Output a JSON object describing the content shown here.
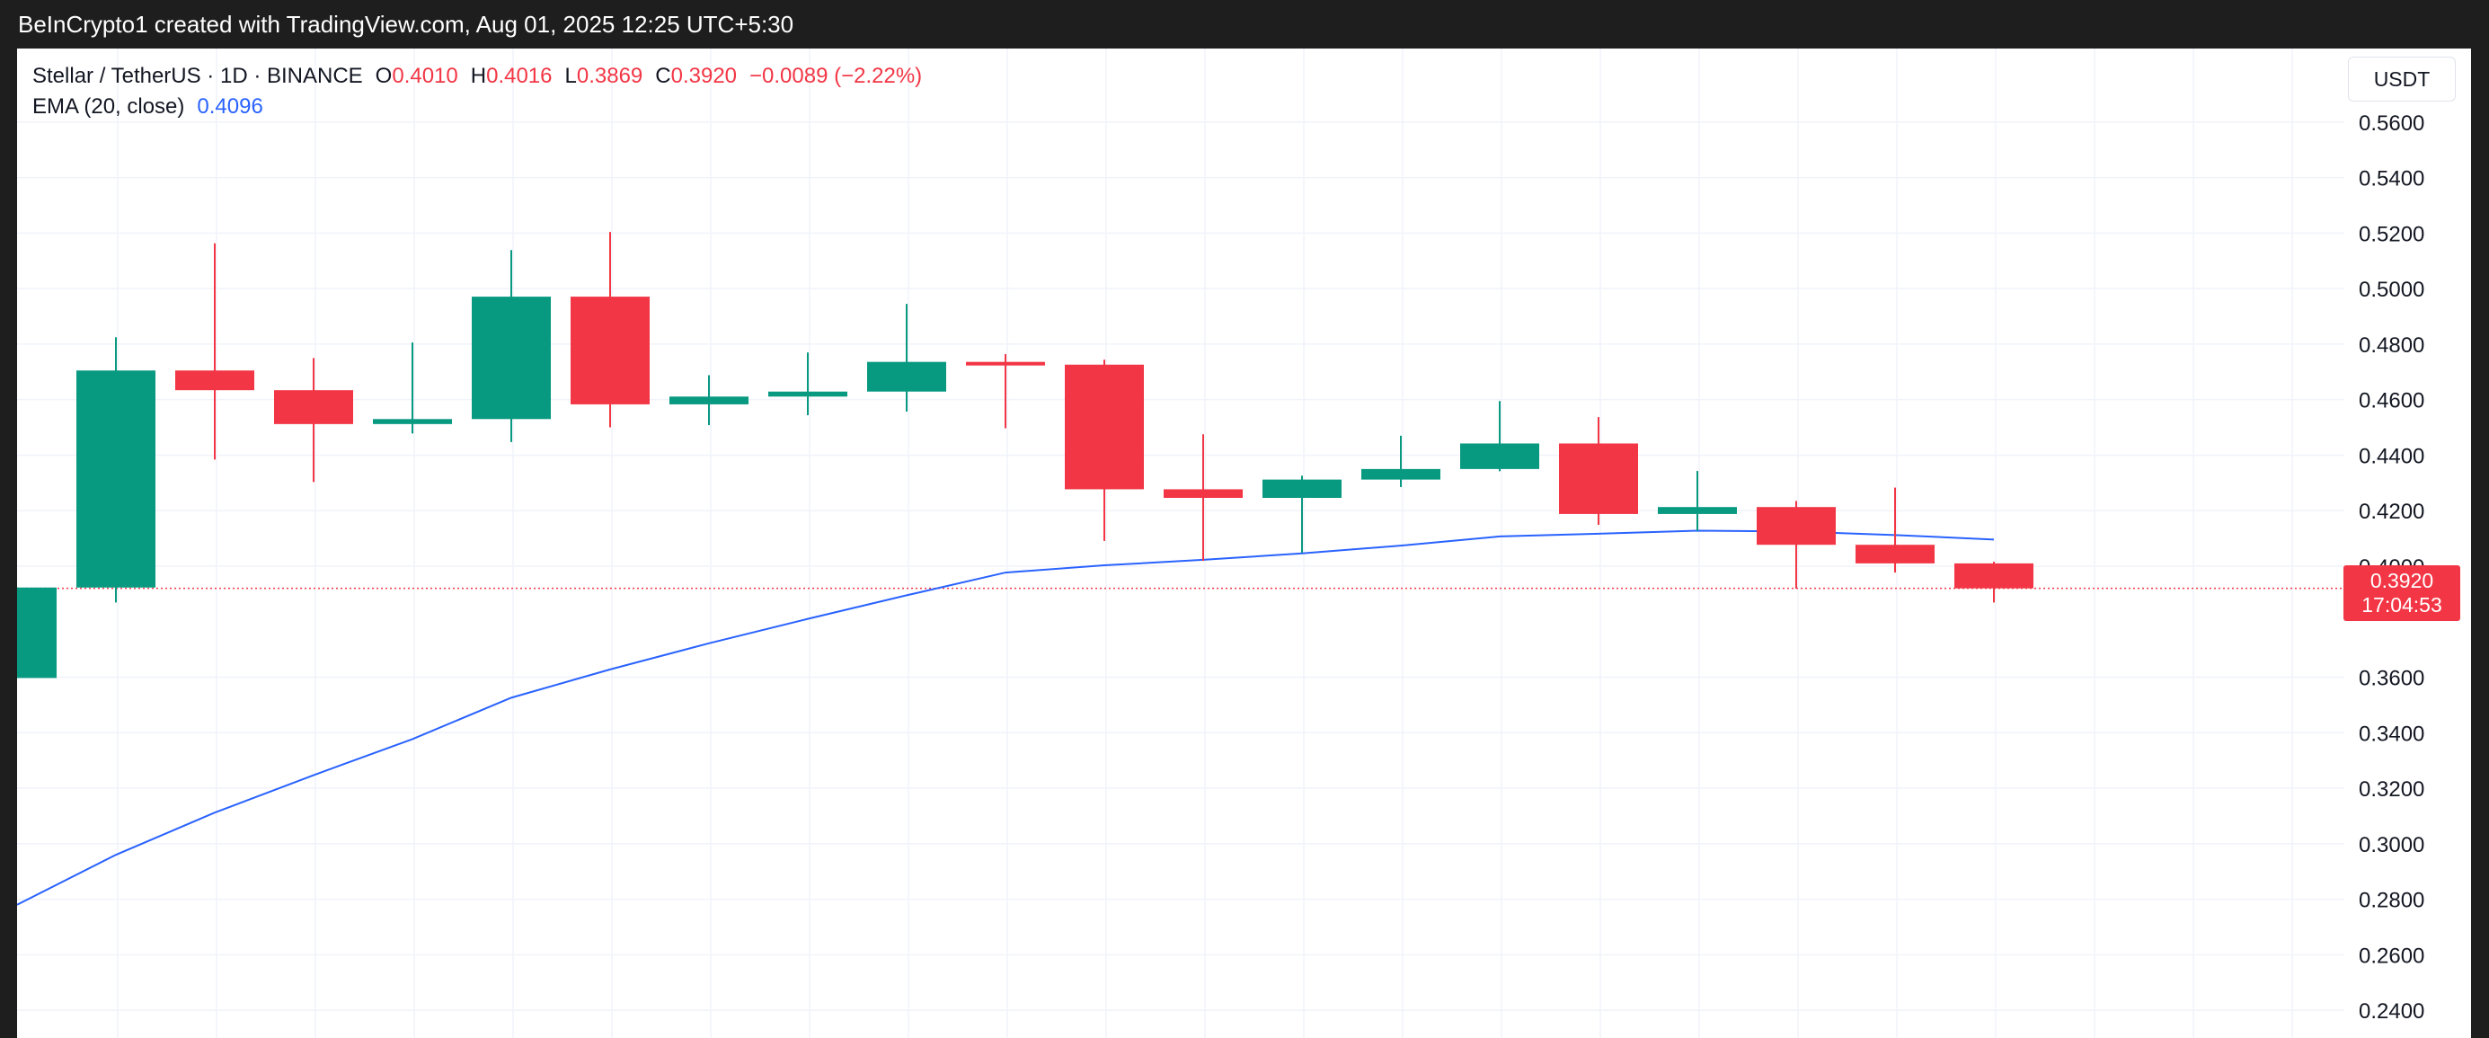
{
  "header": {
    "text": "BeInCrypto1 created with TradingView.com, Aug 01, 2025 12:25 UTC+5:30"
  },
  "legend": {
    "symbol": "Stellar / TetherUS · 1D · BINANCE",
    "open_label": "O",
    "open_value": "0.4010",
    "high_label": "H",
    "high_value": "0.4016",
    "low_label": "L",
    "low_value": "0.3869",
    "close_label": "C",
    "close_value": "0.3920",
    "change": "−0.0089 (−2.22%)",
    "ema_label": "EMA (20, close)",
    "ema_value": "0.4096"
  },
  "currency": "USDT",
  "price_tag": {
    "price": "0.3920",
    "countdown": "17:04:53"
  },
  "colors": {
    "up": "#089981",
    "down": "#f23645",
    "ema": "#2962ff",
    "grid": "#f0f3fa",
    "price_line": "#f23645"
  },
  "chart_data": {
    "type": "candlestick",
    "title": "Stellar / TetherUS · 1D · BINANCE",
    "ylim": [
      0.23,
      0.5865
    ],
    "yticks": [
      "0.5600",
      "0.5400",
      "0.5200",
      "0.5000",
      "0.4800",
      "0.4600",
      "0.4400",
      "0.4200",
      "0.4000",
      "0.3600",
      "0.3400",
      "0.3200",
      "0.3000",
      "0.2800",
      "0.2600",
      "0.2400"
    ],
    "current_price": 0.392,
    "candles": [
      {
        "o": 0.3597,
        "h": 0.3923,
        "l": 0.3597,
        "c": 0.3923
      },
      {
        "o": 0.3923,
        "h": 0.4825,
        "l": 0.3869,
        "c": 0.4705
      },
      {
        "o": 0.4705,
        "h": 0.5163,
        "l": 0.4384,
        "c": 0.4634
      },
      {
        "o": 0.4634,
        "h": 0.475,
        "l": 0.4303,
        "c": 0.4512
      },
      {
        "o": 0.4512,
        "h": 0.4806,
        "l": 0.4478,
        "c": 0.453
      },
      {
        "o": 0.453,
        "h": 0.5139,
        "l": 0.4447,
        "c": 0.4971
      },
      {
        "o": 0.4971,
        "h": 0.5204,
        "l": 0.45,
        "c": 0.4583
      },
      {
        "o": 0.4583,
        "h": 0.4688,
        "l": 0.4508,
        "c": 0.4611
      },
      {
        "o": 0.4611,
        "h": 0.477,
        "l": 0.4544,
        "c": 0.4629
      },
      {
        "o": 0.4629,
        "h": 0.4945,
        "l": 0.4557,
        "c": 0.4736
      },
      {
        "o": 0.4736,
        "h": 0.4764,
        "l": 0.4497,
        "c": 0.4726
      },
      {
        "o": 0.4726,
        "h": 0.4744,
        "l": 0.4091,
        "c": 0.4277
      },
      {
        "o": 0.4277,
        "h": 0.4475,
        "l": 0.4019,
        "c": 0.4246
      },
      {
        "o": 0.4246,
        "h": 0.4326,
        "l": 0.4048,
        "c": 0.4312
      },
      {
        "o": 0.4312,
        "h": 0.447,
        "l": 0.4285,
        "c": 0.435
      },
      {
        "o": 0.435,
        "h": 0.4595,
        "l": 0.4342,
        "c": 0.4442
      },
      {
        "o": 0.4442,
        "h": 0.4537,
        "l": 0.4149,
        "c": 0.4188
      },
      {
        "o": 0.4188,
        "h": 0.4343,
        "l": 0.4127,
        "c": 0.4213
      },
      {
        "o": 0.4213,
        "h": 0.4235,
        "l": 0.3919,
        "c": 0.4077
      },
      {
        "o": 0.4077,
        "h": 0.4283,
        "l": 0.3977,
        "c": 0.401
      },
      {
        "o": 0.401,
        "h": 0.4016,
        "l": 0.3869,
        "c": 0.392
      }
    ],
    "ema": {
      "name": "EMA (20, close)",
      "values": [
        0.278,
        0.296,
        0.3112,
        0.3247,
        0.3377,
        0.3526,
        0.3628,
        0.3722,
        0.381,
        0.3895,
        0.3977,
        0.4003,
        0.4023,
        0.4046,
        0.4074,
        0.4107,
        0.4117,
        0.4128,
        0.4125,
        0.4112,
        0.4096
      ]
    }
  }
}
